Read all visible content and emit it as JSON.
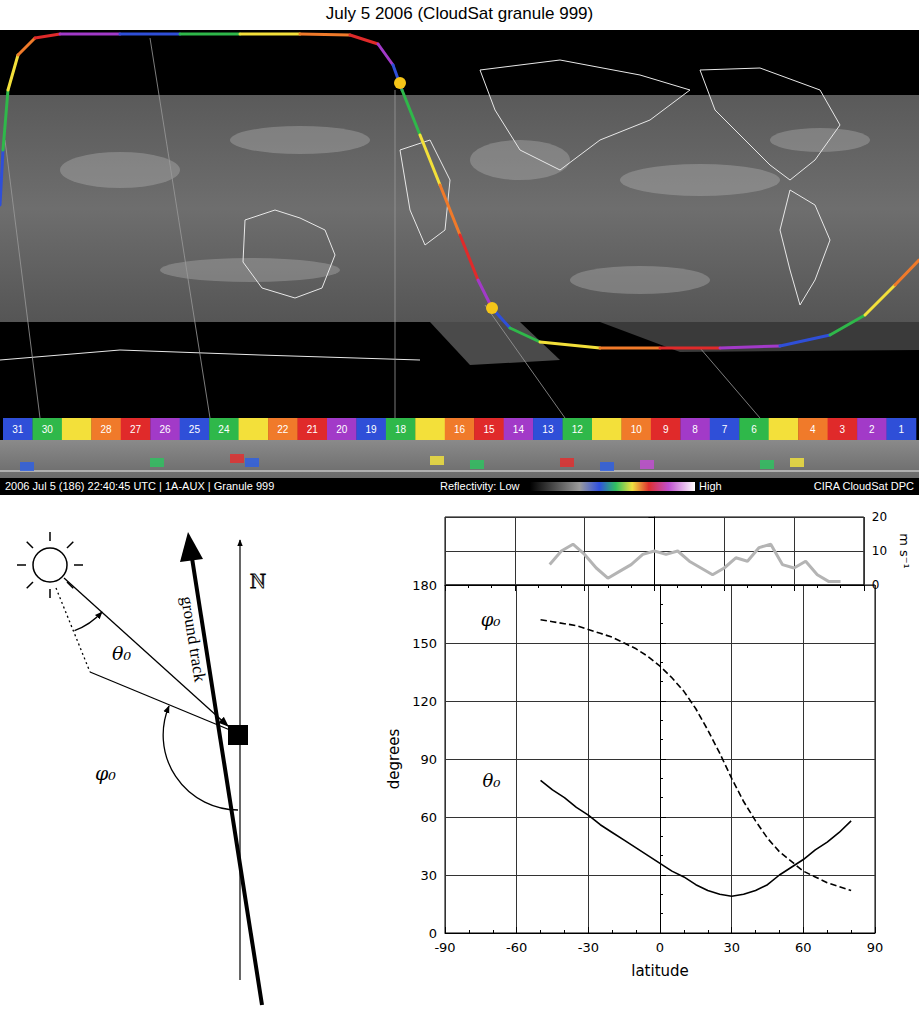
{
  "title": "July 5 2006 (CloudSat granule 999)",
  "map": {
    "segments": [
      31,
      30,
      null,
      28,
      27,
      26,
      25,
      24,
      null,
      22,
      21,
      20,
      19,
      18,
      null,
      16,
      15,
      14,
      13,
      12,
      null,
      10,
      9,
      8,
      7,
      6,
      null,
      4,
      3,
      2,
      1
    ],
    "caption": "2006 Jul 5 (186) 22:40:45 UTC | 1A-AUX | Granule 999",
    "colorbar_low": "Reflectivity: Low",
    "colorbar_high": "High",
    "credit": "CIRA CloudSat DPC"
  },
  "diagram": {
    "ground_track": "ground track",
    "north": "N",
    "zenith": "θ₀",
    "azimuth": "φ₀"
  },
  "chart_data": {
    "type": "line",
    "xlabel": "latitude",
    "ylabel": "degrees",
    "y2label": "m s⁻¹",
    "x": [
      -50,
      -45,
      -40,
      -35,
      -30,
      -25,
      -20,
      -15,
      -10,
      -5,
      0,
      5,
      10,
      15,
      20,
      25,
      30,
      35,
      40,
      45,
      50,
      55,
      60,
      65,
      70,
      75,
      80
    ],
    "xlim": [
      -90,
      90
    ],
    "xticks": [
      -90,
      -60,
      -30,
      0,
      30,
      60,
      90
    ],
    "ylim": [
      0,
      180
    ],
    "yticks": [
      0,
      30,
      60,
      90,
      120,
      150,
      180
    ],
    "y2lim": [
      0,
      20
    ],
    "y2ticks": [
      0,
      10,
      20
    ],
    "grid": true,
    "series": [
      {
        "name": "φ₀",
        "color": "#000000",
        "line_style": "dashed",
        "values": [
          162,
          161,
          160,
          159,
          157,
          155,
          153,
          150,
          147,
          143,
          138,
          132,
          125,
          116,
          105,
          93,
          80,
          68,
          58,
          49,
          42,
          37,
          32,
          29,
          26,
          24,
          22
        ]
      },
      {
        "name": "θ₀",
        "color": "#000000",
        "line_style": "solid",
        "values": [
          79,
          74,
          70,
          65,
          61,
          56,
          52,
          48,
          44,
          40,
          36,
          32,
          29,
          25,
          22,
          20,
          19,
          20,
          22,
          25,
          30,
          34,
          38,
          43,
          47,
          52,
          58
        ]
      },
      {
        "color": "#b4b4b4",
        "line_style": "solid",
        "axis": "y2",
        "values": [
          null,
          6,
          10,
          12,
          9,
          5,
          2,
          4,
          6,
          9,
          10,
          9,
          10,
          7,
          5,
          3,
          5,
          8,
          7,
          11,
          12,
          6,
          5,
          7,
          3,
          1,
          1
        ]
      }
    ]
  }
}
